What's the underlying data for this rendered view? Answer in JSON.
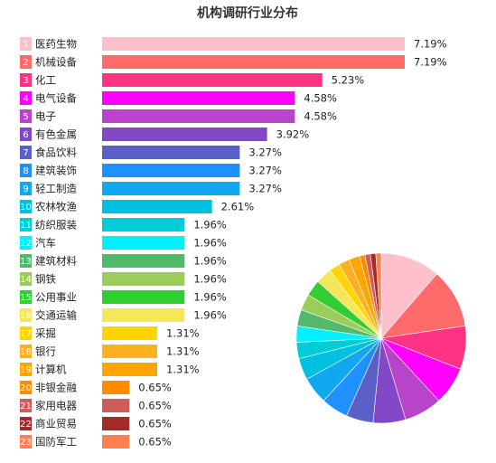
{
  "chart_data": [
    {
      "type": "bar",
      "orientation": "horizontal",
      "title": "机构调研行业分布",
      "ranks": [
        "1",
        "2",
        "3",
        "4",
        "5",
        "6",
        "7",
        "8",
        "9",
        "10",
        "11",
        "12",
        "13",
        "14",
        "15",
        "16",
        "17",
        "18",
        "19",
        "20",
        "21",
        "22",
        "23"
      ],
      "categories": [
        "医药生物",
        "机械设备",
        "化工",
        "电气设备",
        "电子",
        "有色金属",
        "食品饮料",
        "建筑装饰",
        "轻工制造",
        "农林牧渔",
        "纺织服装",
        "汽车",
        "建筑材料",
        "钢铁",
        "公用事业",
        "交通运输",
        "采掘",
        "银行",
        "计算机",
        "非银金融",
        "家用电器",
        "商业贸易",
        "国防军工"
      ],
      "values": [
        7.19,
        7.19,
        5.23,
        4.58,
        4.58,
        3.92,
        3.27,
        3.27,
        3.27,
        2.61,
        1.96,
        1.96,
        1.96,
        1.96,
        1.96,
        1.96,
        1.31,
        1.31,
        1.31,
        0.65,
        0.65,
        0.65,
        0.65
      ],
      "value_labels": [
        "7.19%",
        "7.19%",
        "5.23%",
        "4.58%",
        "4.58%",
        "3.92%",
        "3.27%",
        "3.27%",
        "3.27%",
        "2.61%",
        "1.96%",
        "1.96%",
        "1.96%",
        "1.96%",
        "1.96%",
        "1.96%",
        "1.31%",
        "1.31%",
        "1.31%",
        "0.65%",
        "0.65%",
        "0.65%",
        "0.65%"
      ],
      "colors": [
        "#ffc0cb",
        "#ff6b6b",
        "#ff3385",
        "#ff00ff",
        "#b845c9",
        "#8248c8",
        "#5b60c8",
        "#1e90ff",
        "#11a8f0",
        "#00c0e0",
        "#00cdd6",
        "#00f0ff",
        "#52b86a",
        "#9acd5a",
        "#32cd32",
        "#f5e65a",
        "#ffd400",
        "#ffb020",
        "#ffa500",
        "#ff8c00",
        "#cd5c5c",
        "#a52a2a",
        "#ff7f50"
      ],
      "grid": false,
      "legend": "none"
    },
    {
      "type": "pie",
      "categories": [
        "医药生物",
        "机械设备",
        "化工",
        "电气设备",
        "电子",
        "有色金属",
        "食品饮料",
        "建筑装饰",
        "轻工制造",
        "农林牧渔",
        "纺织服装",
        "汽车",
        "建筑材料",
        "钢铁",
        "公用事业",
        "交通运输",
        "采掘",
        "银行",
        "计算机",
        "非银金融",
        "家用电器",
        "商业贸易",
        "国防军工"
      ],
      "values": [
        11,
        11,
        8,
        7,
        7,
        6,
        5,
        5,
        5,
        4,
        3,
        3,
        3,
        3,
        3,
        3,
        2,
        2,
        2,
        1,
        1,
        1,
        1
      ],
      "legend": "none"
    }
  ]
}
